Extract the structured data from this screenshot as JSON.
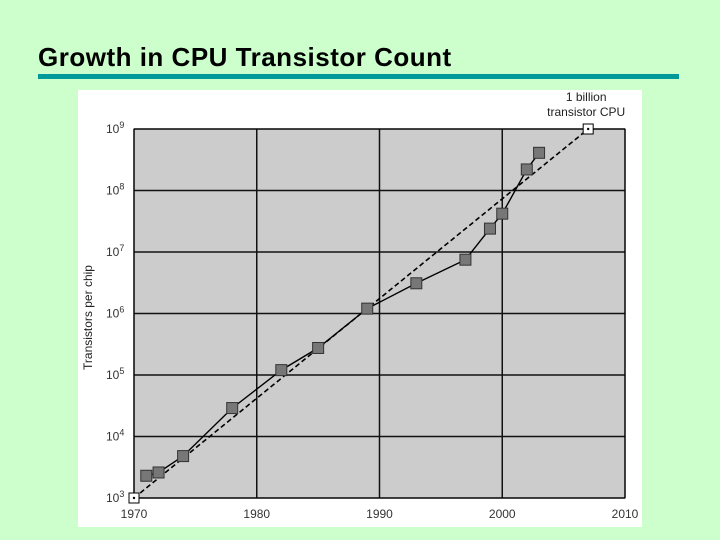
{
  "slide": {
    "title": "Growth in CPU Transistor Count",
    "accent_color": "#009999",
    "background_color": "#ccffcc"
  },
  "chart_data": {
    "type": "scatter",
    "ylabel": "Transistors per chip",
    "xlabel": "",
    "yscale": "log",
    "xlim": [
      1970,
      2010
    ],
    "ylim": [
      1000,
      1000000000
    ],
    "x_ticks": [
      "1970",
      "1980",
      "1990",
      "2000",
      "2010"
    ],
    "y_ticks": [
      {
        "base": "10",
        "exp": "3"
      },
      {
        "base": "10",
        "exp": "4"
      },
      {
        "base": "10",
        "exp": "5"
      },
      {
        "base": "10",
        "exp": "6"
      },
      {
        "base": "10",
        "exp": "7"
      },
      {
        "base": "10",
        "exp": "8"
      },
      {
        "base": "10",
        "exp": "9"
      }
    ],
    "grid": true,
    "plot_background": "#cccccc",
    "series": [
      {
        "style": "solid-with-markers",
        "points": [
          {
            "x": 1971,
            "y": 2300
          },
          {
            "x": 1972,
            "y": 2600
          },
          {
            "x": 1974,
            "y": 4800
          },
          {
            "x": 1978,
            "y": 29000
          },
          {
            "x": 1982,
            "y": 120000
          },
          {
            "x": 1985,
            "y": 275000
          },
          {
            "x": 1989,
            "y": 1200000
          },
          {
            "x": 1993,
            "y": 3100000
          },
          {
            "x": 1997,
            "y": 7500000
          },
          {
            "x": 1999,
            "y": 24000000
          },
          {
            "x": 2000,
            "y": 42000000
          },
          {
            "x": 2002,
            "y": 220000000
          },
          {
            "x": 2003,
            "y": 410000000
          }
        ]
      },
      {
        "style": "dashed-trend",
        "points": [
          {
            "x": 1970,
            "y": 1000
          },
          {
            "x": 2007,
            "y": 1000000000
          }
        ]
      }
    ],
    "annotations": [
      {
        "lines": [
          "1 billion",
          "transistor CPU"
        ],
        "x": 2007,
        "y": 1000000000
      }
    ]
  }
}
